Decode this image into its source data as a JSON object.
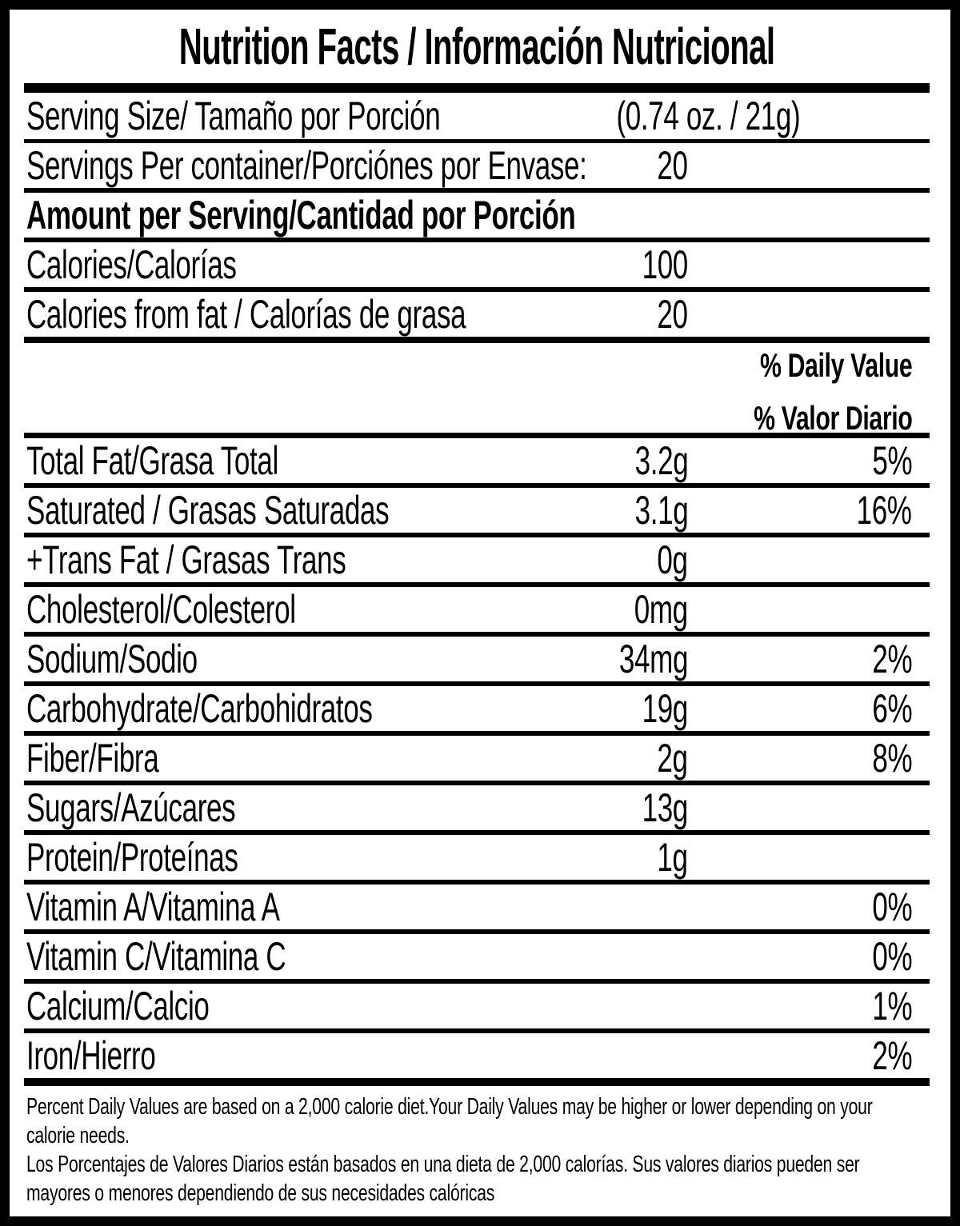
{
  "title": "Nutrition Facts / Información Nutricional",
  "serving": {
    "label": "Serving Size/ Tamaño por Porción",
    "value": "(0.74 oz. / 21g)"
  },
  "servings_per_container": {
    "label": "Servings Per container/Porciónes por Envase:",
    "value": "20"
  },
  "section_heading": "Amount per Serving/Cantidad por Porción",
  "calories": {
    "label": "Calories/Calorías",
    "value": "100"
  },
  "calories_from_fat": {
    "label": "Calories from fat / Calorías de grasa",
    "value": "20"
  },
  "daily_value_header": {
    "en": "% Daily Value",
    "es": "% Valor Diario"
  },
  "nutrients": [
    {
      "label": "Total Fat/Grasa Total",
      "amount": "3.2g",
      "dv": "5%"
    },
    {
      "label": "Saturated / Grasas Saturadas",
      "amount": "3.1g",
      "dv": "16%"
    },
    {
      "label": "+Trans Fat / Grasas Trans",
      "amount": "0g",
      "dv": ""
    },
    {
      "label": "Cholesterol/Colesterol",
      "amount": "0mg",
      "dv": ""
    },
    {
      "label": "Sodium/Sodio",
      "amount": "34mg",
      "dv": "2%"
    },
    {
      "label": "Carbohydrate/Carbohidratos",
      "amount": "19g",
      "dv": "6%"
    },
    {
      "label": "Fiber/Fibra",
      "amount": "2g",
      "dv": "8%"
    },
    {
      "label": "Sugars/Azúcares",
      "amount": "13g",
      "dv": ""
    },
    {
      "label": "Protein/Proteínas",
      "amount": "1g",
      "dv": ""
    },
    {
      "label": "Vitamin A/Vitamina A",
      "amount": "",
      "dv": "0%"
    },
    {
      "label": "Vitamin C/Vitamina C",
      "amount": "",
      "dv": "0%"
    },
    {
      "label": "Calcium/Calcio",
      "amount": "",
      "dv": "1%"
    },
    {
      "label": "Iron/Hierro",
      "amount": "",
      "dv": "2%"
    }
  ],
  "footnotes": {
    "en_lines": [
      "Percent Daily Values are based on a 2,000 calorie diet.Your Daily Values may be higher or lower depending on your",
      "calorie needs."
    ],
    "es_lines": [
      "Los Porcentajes de Valores Diarios están basados en una dieta de 2,000 calorías. Sus valores diarios pueden ser",
      "mayores o menores dependiendo de sus necesidades calóricas"
    ]
  },
  "colors": {
    "ink": "#000000",
    "paper": "#ffffff"
  }
}
